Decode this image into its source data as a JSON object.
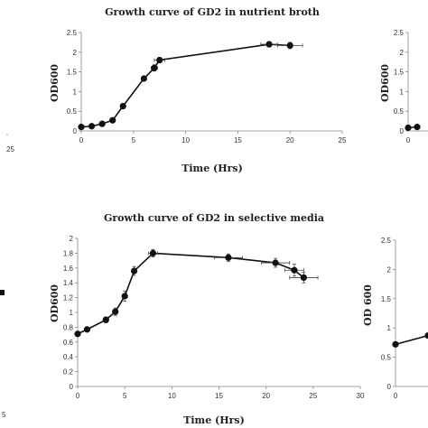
{
  "chart_data": [
    {
      "type": "line",
      "title": "Growth curve of GD2 in nutrient broth",
      "xlabel": "Time (Hrs)",
      "ylabel": "OD600",
      "xlim": [
        0,
        25
      ],
      "ylim": [
        0,
        2.5
      ],
      "xticks": [
        "0",
        "5",
        "10",
        "15",
        "20",
        "25"
      ],
      "yticks": [
        "0",
        "0.5",
        "1",
        "1.5",
        "2",
        "2.5"
      ],
      "grid": false,
      "x": [
        0,
        1,
        2,
        3,
        4,
        6,
        7,
        7.5,
        18,
        20
      ],
      "y": [
        0.1,
        0.12,
        0.18,
        0.27,
        0.63,
        1.33,
        1.6,
        1.8,
        2.2,
        2.17
      ],
      "xerr": [
        0,
        0,
        0,
        0,
        0,
        0,
        0.3,
        0.5,
        0.8,
        1.2
      ],
      "yerr": [
        0,
        0,
        0,
        0,
        0,
        0.04,
        0.08,
        0.06,
        0.07,
        0.08
      ]
    },
    {
      "type": "line",
      "title": "Growth curve of GD2 in selective media",
      "xlabel": "Time (Hrs)",
      "ylabel": "OD600",
      "xlim": [
        0,
        30
      ],
      "ylim": [
        0,
        2
      ],
      "xticks": [
        "0",
        "5",
        "10",
        "15",
        "20",
        "25",
        "30"
      ],
      "yticks": [
        "0",
        "0.2",
        "0.4",
        "0.6",
        "0.8",
        "1",
        "1.2",
        "1.4",
        "1.6",
        "1.8",
        "2"
      ],
      "grid": false,
      "x": [
        0,
        1,
        3,
        4,
        5,
        6,
        8,
        16,
        21,
        23,
        24
      ],
      "y": [
        0.71,
        0.77,
        0.9,
        1.01,
        1.22,
        1.56,
        1.8,
        1.74,
        1.67,
        1.57,
        1.47
      ],
      "xerr": [
        0,
        0,
        0,
        0,
        0,
        0,
        0.5,
        1.5,
        1.5,
        1.0,
        1.5
      ],
      "yerr": [
        0.02,
        0.02,
        0.04,
        0.05,
        0.07,
        0.06,
        0.05,
        0.05,
        0.06,
        0.08,
        0.07
      ]
    },
    {
      "type": "line",
      "partial": "right-top",
      "title": "",
      "xlabel": "",
      "ylabel": "OD600",
      "ylim": [
        0,
        2.5
      ],
      "yticks": [
        "0",
        "0.5",
        "1",
        "1.5",
        "2",
        "2.5"
      ],
      "xticks": [
        "0"
      ],
      "x": [
        0,
        0.5
      ],
      "y": [
        0.08,
        0.1
      ]
    },
    {
      "type": "line",
      "partial": "right-bottom",
      "title": "",
      "xlabel": "",
      "ylabel": "OD 600",
      "ylim": [
        0,
        2.5
      ],
      "yticks": [
        "0",
        "0.5",
        "1",
        "1.5",
        "2",
        "2.5"
      ],
      "xticks": [
        "0"
      ],
      "x": [
        0,
        1
      ],
      "y": [
        0.72,
        0.87
      ]
    },
    {
      "type": "line",
      "partial": "left-edge",
      "xticks_top": [
        "25"
      ],
      "xticks_bottom": [
        "5"
      ]
    }
  ]
}
